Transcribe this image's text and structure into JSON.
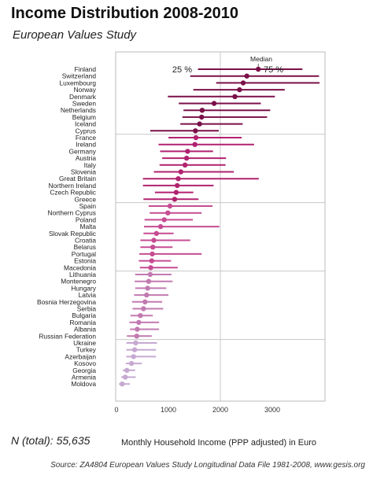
{
  "header": {
    "title": "Income Distribution 2008-2010",
    "subtitle": "European Values Study"
  },
  "footer": {
    "n_total": "N (total): 55,635",
    "source": "Source: ZA4804 European Values Study Longitudinal Data File 1981-2008, www.gesis.org"
  },
  "chart_data": {
    "type": "scatter",
    "title": "Income Distribution 2008-2010",
    "subtitle": "European Values Study",
    "xlabel": "Monthly Household Income (PPP adjusted) in Euro",
    "xlim": [
      -50,
      4000
    ],
    "xticks": [
      0,
      1000,
      2000,
      3000
    ],
    "grid": true,
    "legend": {
      "median_label": "Median",
      "p25_label": "25 %",
      "p75_label": "75 %"
    },
    "series": [
      {
        "name": "Median",
        "key": "median"
      },
      {
        "name": "25 %",
        "key": "p25"
      },
      {
        "name": "75 %",
        "key": "p75"
      }
    ],
    "group_colors": [
      "#7a1048",
      "#b0226f",
      "#c64c93",
      "#c27ab0",
      "#c6a9d2"
    ],
    "countries": [
      {
        "name": "Finland",
        "median": 2730,
        "p25": 1570,
        "p75": 3580,
        "group": 0
      },
      {
        "name": "Switzerland",
        "median": 2510,
        "p25": 1420,
        "p75": 3900,
        "group": 0
      },
      {
        "name": "Luxembourg",
        "median": 2440,
        "p25": 1920,
        "p75": 3910,
        "group": 0
      },
      {
        "name": "Norway",
        "median": 2370,
        "p25": 1480,
        "p75": 3240,
        "group": 0
      },
      {
        "name": "Denmark",
        "median": 2280,
        "p25": 990,
        "p75": 3050,
        "group": 0
      },
      {
        "name": "Sweden",
        "median": 1880,
        "p25": 1200,
        "p75": 2780,
        "group": 0
      },
      {
        "name": "Netherlands",
        "median": 1650,
        "p25": 1290,
        "p75": 2960,
        "group": 0
      },
      {
        "name": "Belgium",
        "median": 1640,
        "p25": 1270,
        "p75": 2900,
        "group": 0
      },
      {
        "name": "Iceland",
        "median": 1600,
        "p25": 1230,
        "p75": 2430,
        "group": 0
      },
      {
        "name": "Cyprus",
        "median": 1520,
        "p25": 650,
        "p75": 1970,
        "group": 0
      },
      {
        "name": "France",
        "median": 1530,
        "p25": 1000,
        "p75": 2410,
        "group": 1
      },
      {
        "name": "Ireland",
        "median": 1510,
        "p25": 810,
        "p75": 2650,
        "group": 1
      },
      {
        "name": "Germany",
        "median": 1370,
        "p25": 840,
        "p75": 1860,
        "group": 1
      },
      {
        "name": "Austria",
        "median": 1350,
        "p25": 880,
        "p75": 2110,
        "group": 1
      },
      {
        "name": "Italy",
        "median": 1320,
        "p25": 830,
        "p75": 2100,
        "group": 1
      },
      {
        "name": "Slovenia",
        "median": 1240,
        "p25": 720,
        "p75": 2260,
        "group": 1
      },
      {
        "name": "Great Britain",
        "median": 1190,
        "p25": 510,
        "p75": 2740,
        "group": 1
      },
      {
        "name": "Northern Ireland",
        "median": 1170,
        "p25": 510,
        "p75": 1870,
        "group": 1
      },
      {
        "name": "Czech Republic",
        "median": 1150,
        "p25": 740,
        "p75": 1480,
        "group": 1
      },
      {
        "name": "Greece",
        "median": 1120,
        "p25": 520,
        "p75": 1580,
        "group": 1
      },
      {
        "name": "Spain",
        "median": 1030,
        "p25": 620,
        "p75": 1850,
        "group": 2
      },
      {
        "name": "Northern Cyprus",
        "median": 990,
        "p25": 640,
        "p75": 1640,
        "group": 2
      },
      {
        "name": "Poland",
        "median": 920,
        "p25": 540,
        "p75": 1470,
        "group": 2
      },
      {
        "name": "Malta",
        "median": 850,
        "p25": 530,
        "p75": 1980,
        "group": 2
      },
      {
        "name": "Slovak Republic",
        "median": 770,
        "p25": 520,
        "p75": 1100,
        "group": 2
      },
      {
        "name": "Croatia",
        "median": 720,
        "p25": 460,
        "p75": 1420,
        "group": 2
      },
      {
        "name": "Belarus",
        "median": 700,
        "p25": 460,
        "p75": 1080,
        "group": 2
      },
      {
        "name": "Portugal",
        "median": 690,
        "p25": 440,
        "p75": 1640,
        "group": 2
      },
      {
        "name": "Estonia",
        "median": 680,
        "p25": 430,
        "p75": 1050,
        "group": 2
      },
      {
        "name": "Macedonia",
        "median": 660,
        "p25": 450,
        "p75": 1180,
        "group": 2
      },
      {
        "name": "Lithuania",
        "median": 650,
        "p25": 360,
        "p75": 1060,
        "group": 3
      },
      {
        "name": "Montenegro",
        "median": 620,
        "p25": 350,
        "p75": 1080,
        "group": 3
      },
      {
        "name": "Hungary",
        "median": 600,
        "p25": 360,
        "p75": 960,
        "group": 3
      },
      {
        "name": "Latvia",
        "median": 580,
        "p25": 340,
        "p75": 1000,
        "group": 3
      },
      {
        "name": "Bosnia Herzegovina",
        "median": 550,
        "p25": 300,
        "p75": 880,
        "group": 3
      },
      {
        "name": "Serbia",
        "median": 520,
        "p25": 310,
        "p75": 900,
        "group": 3
      },
      {
        "name": "Bulgaria",
        "median": 460,
        "p25": 270,
        "p75": 700,
        "group": 3
      },
      {
        "name": "Romania",
        "median": 430,
        "p25": 250,
        "p75": 820,
        "group": 3
      },
      {
        "name": "Albania",
        "median": 400,
        "p25": 260,
        "p75": 820,
        "group": 3
      },
      {
        "name": "Russian Federation",
        "median": 390,
        "p25": 200,
        "p75": 680,
        "group": 3
      },
      {
        "name": "Ukraine",
        "median": 370,
        "p25": 190,
        "p75": 780,
        "group": 4
      },
      {
        "name": "Turkey",
        "median": 350,
        "p25": 190,
        "p75": 760,
        "group": 4
      },
      {
        "name": "Azerbaijan",
        "median": 330,
        "p25": 190,
        "p75": 760,
        "group": 4
      },
      {
        "name": "Kosovo",
        "median": 290,
        "p25": 180,
        "p75": 490,
        "group": 4
      },
      {
        "name": "Georgia",
        "median": 200,
        "p25": 120,
        "p75": 360,
        "group": 4
      },
      {
        "name": "Armenia",
        "median": 170,
        "p25": 90,
        "p75": 370,
        "group": 4
      },
      {
        "name": "Moldova",
        "median": 110,
        "p25": 50,
        "p75": 260,
        "group": 4
      }
    ]
  }
}
